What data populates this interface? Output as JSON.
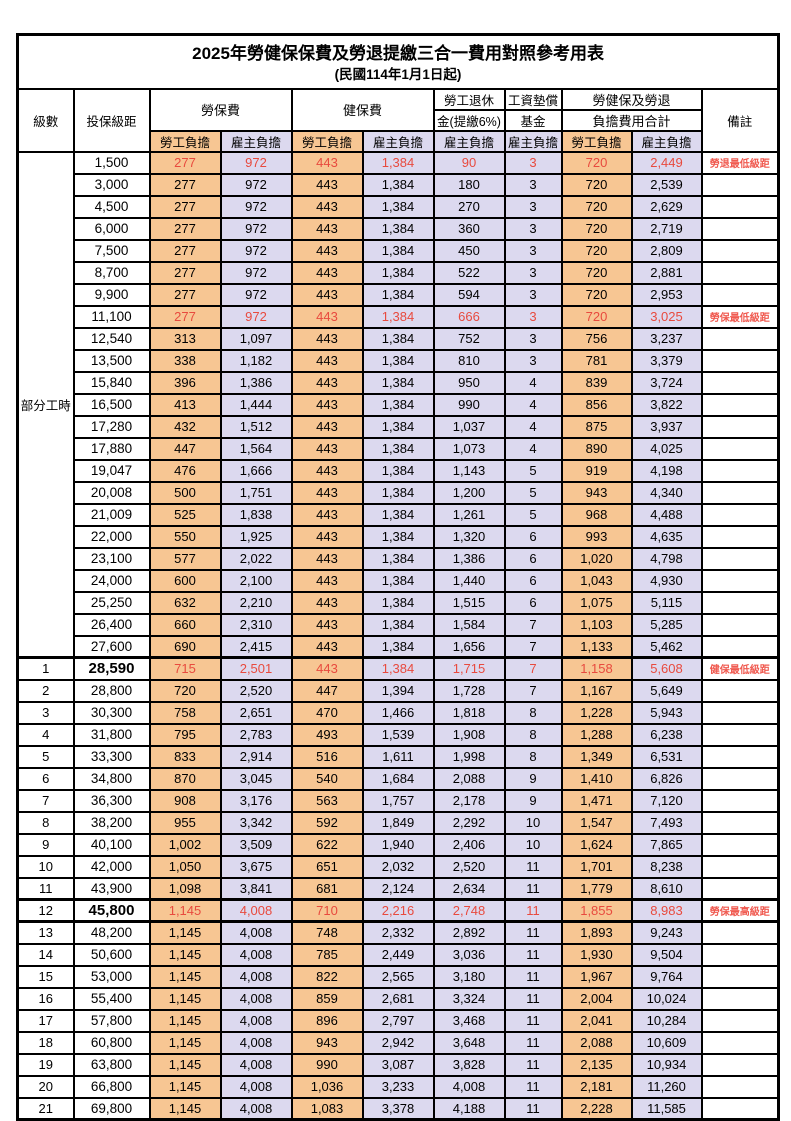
{
  "title": "2025年勞健保保費及勞退提繳三合一費用對照參考用表",
  "subtitle": "(民國114年1月1日起)",
  "header": {
    "level": "級數",
    "bracket": "投保級距",
    "labor_insurance": "勞保費",
    "health_insurance": "健保費",
    "pension_line1": "勞工退休",
    "pension_line2": "金(提繳6%)",
    "wage_fund_line1": "工資墊償",
    "wage_fund_line2": "基金",
    "total_line1": "勞健保及勞退",
    "total_line2": "負擔費用合計",
    "remark": "備註",
    "employee_burden": "勞工負擔",
    "employer_burden": "雇主負擔"
  },
  "group_label": "部分工時",
  "group_rowspan": 23,
  "colors": {
    "employee_bg": "#f7c693",
    "employer_bg": "#dcd9ef",
    "red_text": "#e84a3e",
    "remark_red": "#f05a50",
    "border": "#000000"
  },
  "rows": [
    {
      "level": "",
      "bracket": "1,500",
      "values": [
        "277",
        "972",
        "443",
        "1,384",
        "90",
        "3",
        "720",
        "2,449"
      ],
      "remark": "勞退最低級距",
      "red": true,
      "bold": false
    },
    {
      "level": "",
      "bracket": "3,000",
      "values": [
        "277",
        "972",
        "443",
        "1,384",
        "180",
        "3",
        "720",
        "2,539"
      ],
      "remark": "",
      "red": false,
      "bold": false
    },
    {
      "level": "",
      "bracket": "4,500",
      "values": [
        "277",
        "972",
        "443",
        "1,384",
        "270",
        "3",
        "720",
        "2,629"
      ],
      "remark": "",
      "red": false,
      "bold": false
    },
    {
      "level": "",
      "bracket": "6,000",
      "values": [
        "277",
        "972",
        "443",
        "1,384",
        "360",
        "3",
        "720",
        "2,719"
      ],
      "remark": "",
      "red": false,
      "bold": false
    },
    {
      "level": "",
      "bracket": "7,500",
      "values": [
        "277",
        "972",
        "443",
        "1,384",
        "450",
        "3",
        "720",
        "2,809"
      ],
      "remark": "",
      "red": false,
      "bold": false
    },
    {
      "level": "",
      "bracket": "8,700",
      "values": [
        "277",
        "972",
        "443",
        "1,384",
        "522",
        "3",
        "720",
        "2,881"
      ],
      "remark": "",
      "red": false,
      "bold": false
    },
    {
      "level": "",
      "bracket": "9,900",
      "values": [
        "277",
        "972",
        "443",
        "1,384",
        "594",
        "3",
        "720",
        "2,953"
      ],
      "remark": "",
      "red": false,
      "bold": false
    },
    {
      "level": "",
      "bracket": "11,100",
      "values": [
        "277",
        "972",
        "443",
        "1,384",
        "666",
        "3",
        "720",
        "3,025"
      ],
      "remark": "勞保最低級距",
      "red": true,
      "bold": false
    },
    {
      "level": "",
      "bracket": "12,540",
      "values": [
        "313",
        "1,097",
        "443",
        "1,384",
        "752",
        "3",
        "756",
        "3,237"
      ],
      "remark": "",
      "red": false,
      "bold": false
    },
    {
      "level": "",
      "bracket": "13,500",
      "values": [
        "338",
        "1,182",
        "443",
        "1,384",
        "810",
        "3",
        "781",
        "3,379"
      ],
      "remark": "",
      "red": false,
      "bold": false
    },
    {
      "level": "",
      "bracket": "15,840",
      "values": [
        "396",
        "1,386",
        "443",
        "1,384",
        "950",
        "4",
        "839",
        "3,724"
      ],
      "remark": "",
      "red": false,
      "bold": false
    },
    {
      "level": "",
      "bracket": "16,500",
      "values": [
        "413",
        "1,444",
        "443",
        "1,384",
        "990",
        "4",
        "856",
        "3,822"
      ],
      "remark": "",
      "red": false,
      "bold": false
    },
    {
      "level": "",
      "bracket": "17,280",
      "values": [
        "432",
        "1,512",
        "443",
        "1,384",
        "1,037",
        "4",
        "875",
        "3,937"
      ],
      "remark": "",
      "red": false,
      "bold": false
    },
    {
      "level": "",
      "bracket": "17,880",
      "values": [
        "447",
        "1,564",
        "443",
        "1,384",
        "1,073",
        "4",
        "890",
        "4,025"
      ],
      "remark": "",
      "red": false,
      "bold": false
    },
    {
      "level": "",
      "bracket": "19,047",
      "values": [
        "476",
        "1,666",
        "443",
        "1,384",
        "1,143",
        "5",
        "919",
        "4,198"
      ],
      "remark": "",
      "red": false,
      "bold": false
    },
    {
      "level": "",
      "bracket": "20,008",
      "values": [
        "500",
        "1,751",
        "443",
        "1,384",
        "1,200",
        "5",
        "943",
        "4,340"
      ],
      "remark": "",
      "red": false,
      "bold": false
    },
    {
      "level": "",
      "bracket": "21,009",
      "values": [
        "525",
        "1,838",
        "443",
        "1,384",
        "1,261",
        "5",
        "968",
        "4,488"
      ],
      "remark": "",
      "red": false,
      "bold": false
    },
    {
      "level": "",
      "bracket": "22,000",
      "values": [
        "550",
        "1,925",
        "443",
        "1,384",
        "1,320",
        "6",
        "993",
        "4,635"
      ],
      "remark": "",
      "red": false,
      "bold": false
    },
    {
      "level": "",
      "bracket": "23,100",
      "values": [
        "577",
        "2,022",
        "443",
        "1,384",
        "1,386",
        "6",
        "1,020",
        "4,798"
      ],
      "remark": "",
      "red": false,
      "bold": false
    },
    {
      "level": "",
      "bracket": "24,000",
      "values": [
        "600",
        "2,100",
        "443",
        "1,384",
        "1,440",
        "6",
        "1,043",
        "4,930"
      ],
      "remark": "",
      "red": false,
      "bold": false
    },
    {
      "level": "",
      "bracket": "25,250",
      "values": [
        "632",
        "2,210",
        "443",
        "1,384",
        "1,515",
        "6",
        "1,075",
        "5,115"
      ],
      "remark": "",
      "red": false,
      "bold": false
    },
    {
      "level": "",
      "bracket": "26,400",
      "values": [
        "660",
        "2,310",
        "443",
        "1,384",
        "1,584",
        "7",
        "1,103",
        "5,285"
      ],
      "remark": "",
      "red": false,
      "bold": false
    },
    {
      "level": "",
      "bracket": "27,600",
      "values": [
        "690",
        "2,415",
        "443",
        "1,384",
        "1,656",
        "7",
        "1,133",
        "5,462"
      ],
      "remark": "",
      "red": false,
      "bold": false
    },
    {
      "level": "1",
      "bracket": "28,590",
      "values": [
        "715",
        "2,501",
        "443",
        "1,384",
        "1,715",
        "7",
        "1,158",
        "5,608"
      ],
      "remark": "健保最低級距",
      "red": true,
      "bold": true
    },
    {
      "level": "2",
      "bracket": "28,800",
      "values": [
        "720",
        "2,520",
        "447",
        "1,394",
        "1,728",
        "7",
        "1,167",
        "5,649"
      ],
      "remark": "",
      "red": false,
      "bold": false
    },
    {
      "level": "3",
      "bracket": "30,300",
      "values": [
        "758",
        "2,651",
        "470",
        "1,466",
        "1,818",
        "8",
        "1,228",
        "5,943"
      ],
      "remark": "",
      "red": false,
      "bold": false
    },
    {
      "level": "4",
      "bracket": "31,800",
      "values": [
        "795",
        "2,783",
        "493",
        "1,539",
        "1,908",
        "8",
        "1,288",
        "6,238"
      ],
      "remark": "",
      "red": false,
      "bold": false
    },
    {
      "level": "5",
      "bracket": "33,300",
      "values": [
        "833",
        "2,914",
        "516",
        "1,611",
        "1,998",
        "8",
        "1,349",
        "6,531"
      ],
      "remark": "",
      "red": false,
      "bold": false
    },
    {
      "level": "6",
      "bracket": "34,800",
      "values": [
        "870",
        "3,045",
        "540",
        "1,684",
        "2,088",
        "9",
        "1,410",
        "6,826"
      ],
      "remark": "",
      "red": false,
      "bold": false
    },
    {
      "level": "7",
      "bracket": "36,300",
      "values": [
        "908",
        "3,176",
        "563",
        "1,757",
        "2,178",
        "9",
        "1,471",
        "7,120"
      ],
      "remark": "",
      "red": false,
      "bold": false
    },
    {
      "level": "8",
      "bracket": "38,200",
      "values": [
        "955",
        "3,342",
        "592",
        "1,849",
        "2,292",
        "10",
        "1,547",
        "7,493"
      ],
      "remark": "",
      "red": false,
      "bold": false
    },
    {
      "level": "9",
      "bracket": "40,100",
      "values": [
        "1,002",
        "3,509",
        "622",
        "1,940",
        "2,406",
        "10",
        "1,624",
        "7,865"
      ],
      "remark": "",
      "red": false,
      "bold": false
    },
    {
      "level": "10",
      "bracket": "42,000",
      "values": [
        "1,050",
        "3,675",
        "651",
        "2,032",
        "2,520",
        "11",
        "1,701",
        "8,238"
      ],
      "remark": "",
      "red": false,
      "bold": false
    },
    {
      "level": "11",
      "bracket": "43,900",
      "values": [
        "1,098",
        "3,841",
        "681",
        "2,124",
        "2,634",
        "11",
        "1,779",
        "8,610"
      ],
      "remark": "",
      "red": false,
      "bold": false
    },
    {
      "level": "12",
      "bracket": "45,800",
      "values": [
        "1,145",
        "4,008",
        "710",
        "2,216",
        "2,748",
        "11",
        "1,855",
        "8,983"
      ],
      "remark": "勞保最高級距",
      "red": true,
      "bold": true
    },
    {
      "level": "13",
      "bracket": "48,200",
      "values": [
        "1,145",
        "4,008",
        "748",
        "2,332",
        "2,892",
        "11",
        "1,893",
        "9,243"
      ],
      "remark": "",
      "red": false,
      "bold": false
    },
    {
      "level": "14",
      "bracket": "50,600",
      "values": [
        "1,145",
        "4,008",
        "785",
        "2,449",
        "3,036",
        "11",
        "1,930",
        "9,504"
      ],
      "remark": "",
      "red": false,
      "bold": false
    },
    {
      "level": "15",
      "bracket": "53,000",
      "values": [
        "1,145",
        "4,008",
        "822",
        "2,565",
        "3,180",
        "11",
        "1,967",
        "9,764"
      ],
      "remark": "",
      "red": false,
      "bold": false
    },
    {
      "level": "16",
      "bracket": "55,400",
      "values": [
        "1,145",
        "4,008",
        "859",
        "2,681",
        "3,324",
        "11",
        "2,004",
        "10,024"
      ],
      "remark": "",
      "red": false,
      "bold": false
    },
    {
      "level": "17",
      "bracket": "57,800",
      "values": [
        "1,145",
        "4,008",
        "896",
        "2,797",
        "3,468",
        "11",
        "2,041",
        "10,284"
      ],
      "remark": "",
      "red": false,
      "bold": false
    },
    {
      "level": "18",
      "bracket": "60,800",
      "values": [
        "1,145",
        "4,008",
        "943",
        "2,942",
        "3,648",
        "11",
        "2,088",
        "10,609"
      ],
      "remark": "",
      "red": false,
      "bold": false
    },
    {
      "level": "19",
      "bracket": "63,800",
      "values": [
        "1,145",
        "4,008",
        "990",
        "3,087",
        "3,828",
        "11",
        "2,135",
        "10,934"
      ],
      "remark": "",
      "red": false,
      "bold": false
    },
    {
      "level": "20",
      "bracket": "66,800",
      "values": [
        "1,145",
        "4,008",
        "1,036",
        "3,233",
        "4,008",
        "11",
        "2,181",
        "11,260"
      ],
      "remark": "",
      "red": false,
      "bold": false
    },
    {
      "level": "21",
      "bracket": "69,800",
      "values": [
        "1,145",
        "4,008",
        "1,083",
        "3,378",
        "4,188",
        "11",
        "2,228",
        "11,585"
      ],
      "remark": "",
      "red": false,
      "bold": false
    }
  ]
}
